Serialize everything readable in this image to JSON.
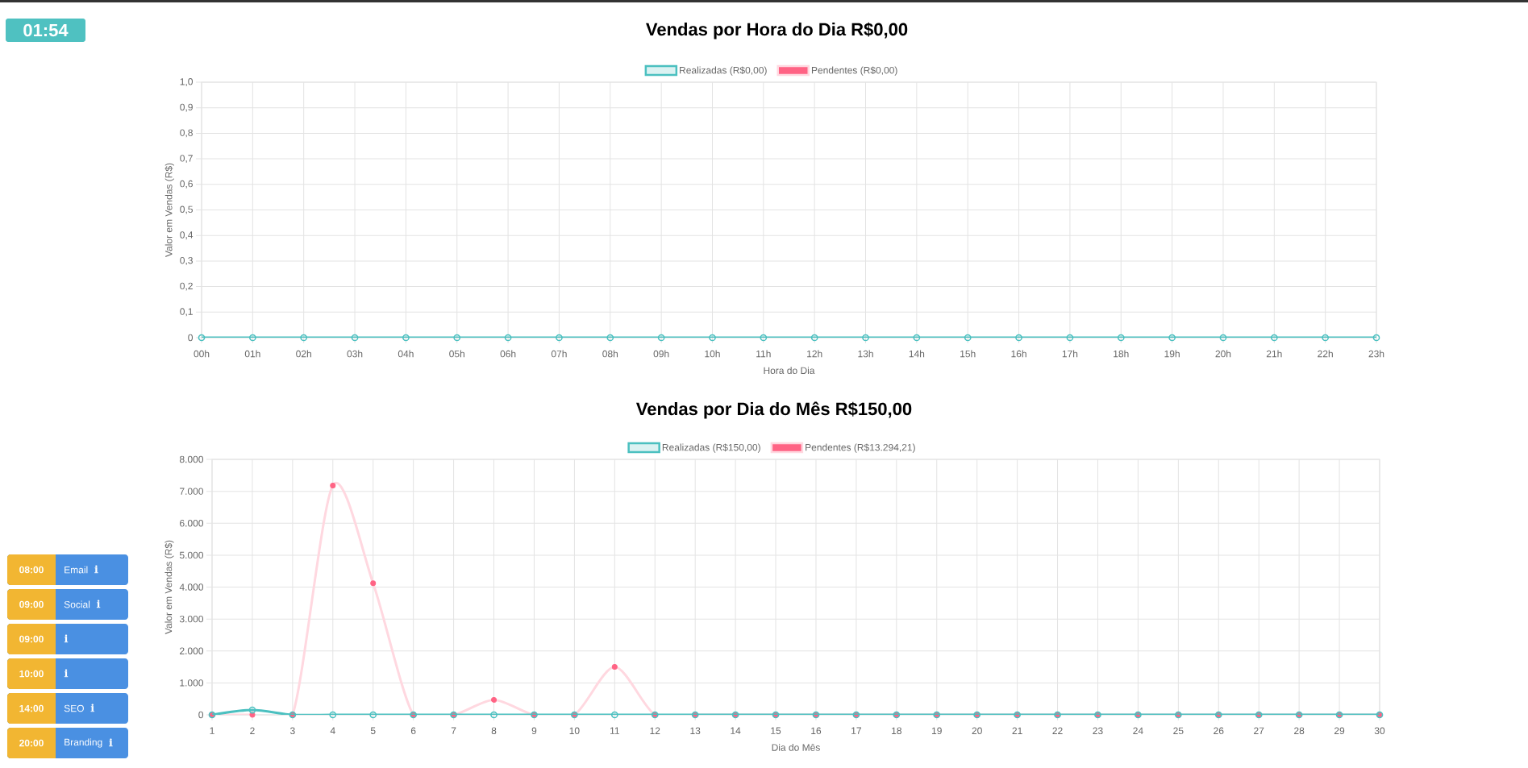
{
  "chart_data": [
    {
      "type": "other",
      "annotations": [
        "01:54"
      ]
    },
    {
      "type": "line",
      "title": "Vendas por Hora do Dia R$0,00",
      "xlabel": "Hora do Dia",
      "ylabel": "Valor em Vendas (R$)",
      "categories": [
        "00h",
        "01h",
        "02h",
        "03h",
        "04h",
        "05h",
        "06h",
        "07h",
        "08h",
        "09h",
        "10h",
        "11h",
        "12h",
        "13h",
        "14h",
        "15h",
        "16h",
        "17h",
        "18h",
        "19h",
        "20h",
        "21h",
        "22h",
        "23h"
      ],
      "series": [
        {
          "name": "Realizadas (R$0,00)",
          "color": "#4bc0c0",
          "values": [
            0,
            0,
            0,
            0,
            0,
            0,
            0,
            0,
            0,
            0,
            0,
            0,
            0,
            0,
            0,
            0,
            0,
            0,
            0,
            0,
            0,
            0,
            0,
            0
          ]
        },
        {
          "name": "Pendentes (R$0,00)",
          "color": "#ff6384",
          "values": [
            null,
            null,
            null,
            null,
            null,
            null,
            null,
            null,
            null,
            null,
            null,
            null,
            null,
            null,
            null,
            null,
            null,
            null,
            null,
            null,
            null,
            null,
            null,
            null
          ]
        }
      ],
      "ylim": [
        0,
        1
      ],
      "yticks": [
        0,
        {
          "value": 0.1,
          "label": "0,1"
        },
        {
          "value": 0.2,
          "label": "0,2"
        },
        {
          "value": 0.3,
          "label": "0,3"
        },
        {
          "value": 0.4,
          "label": "0,4"
        },
        {
          "value": 0.5,
          "label": "0,5"
        },
        {
          "value": 0.6,
          "label": "0,6"
        },
        {
          "value": 0.7,
          "label": "0,7"
        },
        {
          "value": 0.8,
          "label": "0,8"
        },
        {
          "value": 0.9,
          "label": "0,9"
        },
        {
          "value": 1,
          "label": "1,0"
        }
      ],
      "grid": true,
      "legend": "top",
      "marker": "circle"
    },
    {
      "type": "line",
      "title": "Vendas por Dia do Mês R$150,00",
      "xlabel": "Dia do Mês",
      "ylabel": "Valor em Vendas (R$)",
      "categories": [
        "1",
        "2",
        "3",
        "4",
        "5",
        "6",
        "7",
        "8",
        "9",
        "10",
        "11",
        "12",
        "13",
        "14",
        "15",
        "16",
        "17",
        "18",
        "19",
        "20",
        "21",
        "22",
        "23",
        "24",
        "25",
        "26",
        "27",
        "28",
        "29",
        "30"
      ],
      "series": [
        {
          "name": "Realizadas (R$150,00)",
          "color": "#4bc0c0",
          "values": [
            0,
            150,
            0,
            0,
            0,
            0,
            0,
            0,
            0,
            0,
            0,
            0,
            0,
            0,
            0,
            0,
            0,
            0,
            0,
            0,
            0,
            0,
            0,
            0,
            0,
            0,
            0,
            0,
            0,
            0
          ]
        },
        {
          "name": "Pendentes (R$13.294,21)",
          "color": "#ff6384",
          "values": [
            0,
            0,
            0,
            7180,
            4120,
            0,
            0,
            470,
            0,
            0,
            1500,
            0,
            0,
            0,
            0,
            0,
            0,
            0,
            0,
            0,
            0,
            0,
            0,
            0,
            0,
            0,
            0,
            0,
            0,
            0
          ]
        }
      ],
      "ylim": [
        0,
        8000
      ],
      "yticks": [
        0,
        {
          "value": 1000,
          "label": "1.000"
        },
        {
          "value": 2000,
          "label": "2.000"
        },
        {
          "value": 3000,
          "label": "3.000"
        },
        {
          "value": 4000,
          "label": "4.000"
        },
        {
          "value": 5000,
          "label": "5.000"
        },
        {
          "value": 6000,
          "label": "6.000"
        },
        {
          "value": 7000,
          "label": "7.000"
        },
        {
          "value": 8000,
          "label": "8.000"
        }
      ],
      "grid": true,
      "legend": "top",
      "marker": "circle"
    },
    {
      "type": "other",
      "categories": [
        "Email",
        "Social",
        null,
        null,
        "SEO",
        "Branding"
      ],
      "annotations": [
        "08:00",
        "09:00",
        "09:00",
        "10:00",
        "14:00",
        "20:00"
      ]
    }
  ]
}
